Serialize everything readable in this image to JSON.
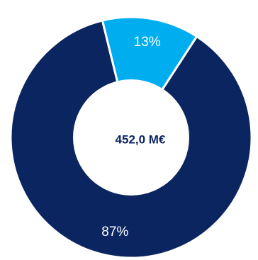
{
  "chart_data": {
    "type": "pie",
    "style": "donut",
    "center_label": "452,0 M€",
    "slices": [
      {
        "label": "87%",
        "value": 87,
        "color": "#0b2560"
      },
      {
        "label": "13%",
        "value": 13,
        "color": "#00aeef"
      }
    ],
    "separator_color": "#ffffff",
    "center_color": "#0b2560"
  }
}
